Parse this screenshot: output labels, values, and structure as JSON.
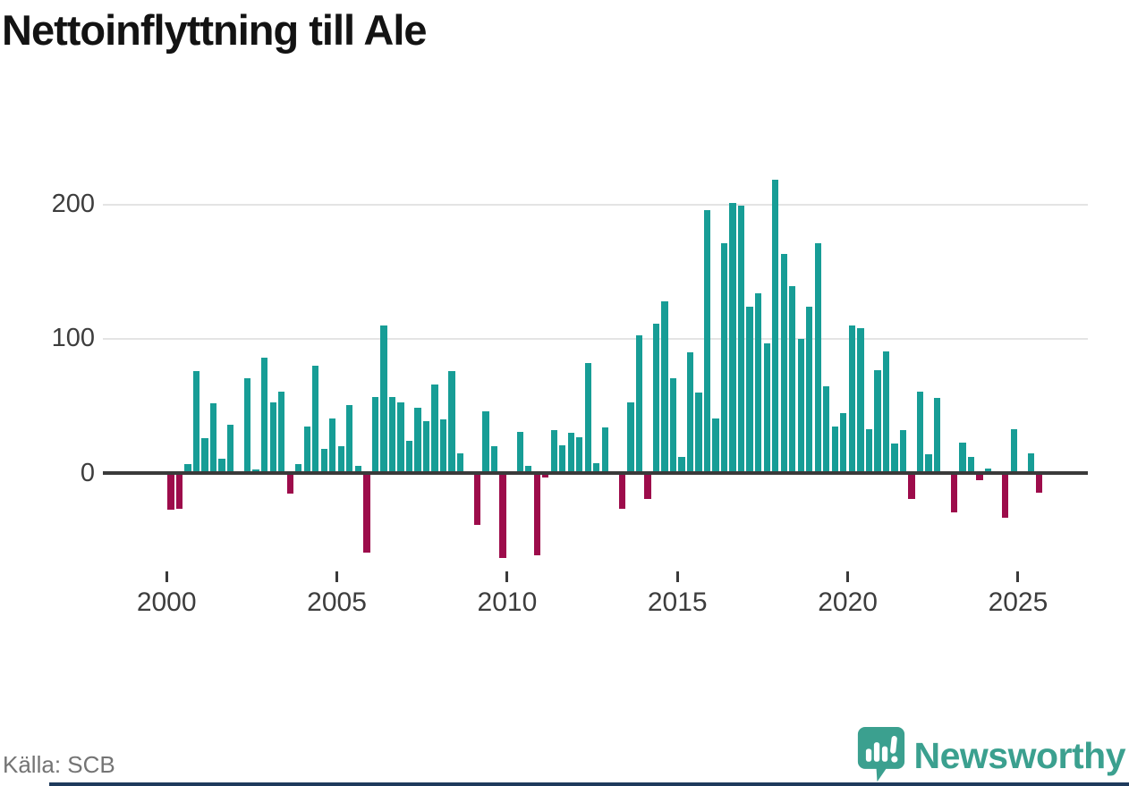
{
  "header": {
    "title": "Nettoinflyttning till Ale"
  },
  "footer": {
    "source": "Källa: SCB",
    "brand": "Newsworthy"
  },
  "chart_data": {
    "type": "bar",
    "title": "Nettoinflyttning till Ale",
    "frequency": "quarterly",
    "x_start": "2000Q1",
    "x_end": "2025Q3",
    "x_tick_labels": [
      "2000",
      "2005",
      "2010",
      "2015",
      "2020",
      "2025"
    ],
    "y_ticks": [
      0,
      100,
      200
    ],
    "ylim": [
      -75,
      235
    ],
    "grid": "horizontal",
    "legend": "none",
    "positive_color": "#179d96",
    "negative_color": "#9d0c4b",
    "values": [
      -27,
      -26,
      7,
      76,
      26,
      52,
      11,
      36,
      1,
      71,
      3,
      86,
      53,
      61,
      -15,
      7,
      35,
      80,
      18,
      41,
      20,
      51,
      6,
      -59,
      57,
      110,
      57,
      53,
      24,
      49,
      39,
      66,
      40,
      76,
      15,
      1,
      -38,
      46,
      20,
      -63,
      1,
      31,
      6,
      -61,
      -3,
      32,
      21,
      30,
      27,
      82,
      8,
      34,
      2,
      -26,
      53,
      103,
      -19,
      111,
      128,
      71,
      12,
      90,
      60,
      196,
      41,
      171,
      201,
      199,
      124,
      134,
      97,
      218,
      163,
      139,
      100,
      124,
      171,
      65,
      35,
      45,
      110,
      108,
      33,
      77,
      91,
      22,
      32,
      -19,
      61,
      14,
      56,
      2,
      -29,
      23,
      12,
      -5,
      4,
      0,
      -33,
      33,
      0,
      15,
      -14
    ]
  }
}
